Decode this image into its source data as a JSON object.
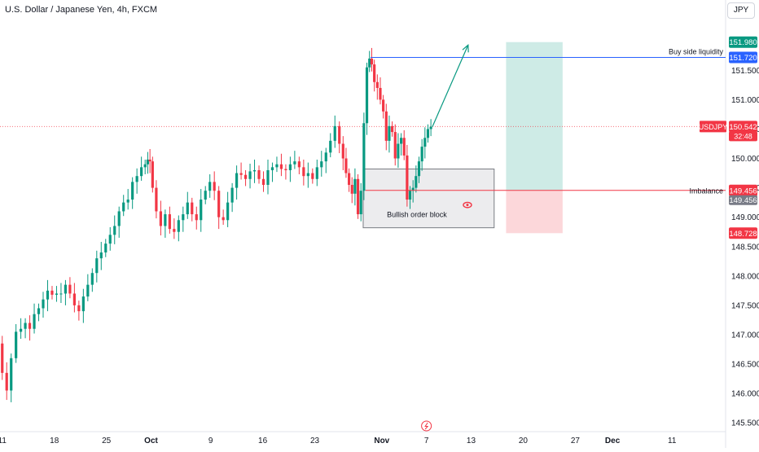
{
  "header": {
    "title": "U.S. Dollar / Japanese Yen, 4h, FXCM",
    "currency_button": "JPY"
  },
  "colors": {
    "up": "#089981",
    "down": "#f23645",
    "accent": "#2962ff",
    "grid": "#f0f3fa"
  },
  "chart_data": {
    "type": "candlestick",
    "title": "U.S. Dollar / Japanese Yen, 4h, FXCM",
    "x_ticks": [
      {
        "day": 11,
        "label": "11"
      },
      {
        "day": 18,
        "label": "18"
      },
      {
        "day": 25,
        "label": "25"
      },
      {
        "day": 31,
        "label": "Oct"
      },
      {
        "day": 39,
        "label": "9"
      },
      {
        "day": 46,
        "label": "16"
      },
      {
        "day": 53,
        "label": "23"
      },
      {
        "day": 62,
        "label": "Nov"
      },
      {
        "day": 68,
        "label": "7"
      },
      {
        "day": 74,
        "label": "13"
      },
      {
        "day": 81,
        "label": "20"
      },
      {
        "day": 88,
        "label": "27"
      },
      {
        "day": 93,
        "label": "Dec"
      },
      {
        "day": 101,
        "label": "11"
      }
    ],
    "y_ticks": [
      145.5,
      146.0,
      146.5,
      147.0,
      147.5,
      148.0,
      148.5,
      149.0,
      149.5,
      150.0,
      150.5,
      151.0,
      151.5
    ],
    "y_tick_labels": [
      "145.500",
      "146.000",
      "146.500",
      "147.000",
      "147.500",
      "148.000",
      "148.500",
      "149.000",
      "149.500",
      "150.000",
      "150.500",
      "151.000",
      "151.500"
    ],
    "ylim": [
      145.35,
      152.35
    ],
    "xlim": [
      10.7,
      108.2
    ],
    "price_points": [
      [
        10.7,
        146.85
      ],
      [
        11.3,
        146.35
      ],
      [
        11.9,
        146.05
      ],
      [
        12.5,
        146.6
      ],
      [
        13.2,
        147.05
      ],
      [
        13.8,
        147.1
      ],
      [
        14.4,
        147.2
      ],
      [
        15.0,
        147.1
      ],
      [
        15.6,
        147.35
      ],
      [
        16.2,
        147.45
      ],
      [
        16.8,
        147.6
      ],
      [
        17.4,
        147.75
      ],
      [
        18.0,
        147.68
      ],
      [
        18.6,
        147.7
      ],
      [
        19.2,
        147.7
      ],
      [
        19.8,
        147.85
      ],
      [
        20.4,
        147.7
      ],
      [
        21.0,
        147.5
      ],
      [
        21.6,
        147.4
      ],
      [
        22.2,
        147.65
      ],
      [
        22.8,
        147.85
      ],
      [
        23.4,
        148.05
      ],
      [
        24.0,
        148.3
      ],
      [
        24.6,
        148.4
      ],
      [
        25.2,
        148.55
      ],
      [
        25.8,
        148.7
      ],
      [
        26.4,
        148.85
      ],
      [
        27.0,
        149.1
      ],
      [
        27.6,
        149.25
      ],
      [
        28.2,
        149.3
      ],
      [
        28.8,
        149.6
      ],
      [
        29.4,
        149.7
      ],
      [
        30.0,
        149.85
      ],
      [
        30.4,
        149.9
      ],
      [
        30.7,
        149.98
      ],
      [
        31.0,
        149.95
      ],
      [
        31.4,
        149.5
      ],
      [
        32.0,
        149.1
      ],
      [
        32.6,
        148.85
      ],
      [
        33.2,
        149.05
      ],
      [
        33.8,
        148.8
      ],
      [
        34.4,
        148.75
      ],
      [
        35.0,
        148.95
      ],
      [
        35.6,
        149.05
      ],
      [
        36.2,
        149.25
      ],
      [
        36.8,
        149.05
      ],
      [
        37.4,
        148.95
      ],
      [
        38.0,
        149.3
      ],
      [
        38.6,
        149.45
      ],
      [
        39.2,
        149.6
      ],
      [
        39.8,
        149.45
      ],
      [
        40.4,
        149.0
      ],
      [
        41.0,
        148.95
      ],
      [
        41.6,
        149.25
      ],
      [
        42.2,
        149.5
      ],
      [
        42.8,
        149.75
      ],
      [
        43.4,
        149.72
      ],
      [
        44.0,
        149.65
      ],
      [
        44.6,
        149.78
      ],
      [
        45.2,
        149.8
      ],
      [
        45.8,
        149.65
      ],
      [
        46.4,
        149.55
      ],
      [
        47.0,
        149.8
      ],
      [
        47.6,
        149.85
      ],
      [
        48.2,
        149.9
      ],
      [
        48.8,
        149.82
      ],
      [
        49.4,
        149.8
      ],
      [
        50.0,
        149.9
      ],
      [
        50.6,
        149.95
      ],
      [
        51.2,
        149.85
      ],
      [
        51.8,
        149.7
      ],
      [
        52.4,
        149.75
      ],
      [
        53.0,
        149.65
      ],
      [
        53.6,
        149.85
      ],
      [
        54.2,
        149.95
      ],
      [
        54.8,
        150.1
      ],
      [
        55.4,
        150.3
      ],
      [
        56.0,
        150.55
      ],
      [
        56.6,
        150.25
      ],
      [
        57.0,
        150.0
      ],
      [
        57.4,
        149.75
      ],
      [
        57.8,
        149.55
      ],
      [
        58.2,
        149.4
      ],
      [
        58.6,
        149.65
      ],
      [
        59.0,
        149.05
      ],
      [
        59.4,
        149.45
      ],
      [
        59.8,
        150.6
      ],
      [
        60.2,
        151.55
      ],
      [
        60.5,
        151.7
      ],
      [
        60.8,
        151.6
      ],
      [
        61.2,
        151.3
      ],
      [
        61.6,
        151.2
      ],
      [
        62.0,
        151.0
      ],
      [
        62.4,
        150.8
      ],
      [
        62.8,
        150.3
      ],
      [
        63.2,
        150.55
      ],
      [
        63.6,
        150.45
      ],
      [
        64.0,
        150.0
      ],
      [
        64.4,
        150.25
      ],
      [
        64.8,
        150.35
      ],
      [
        65.2,
        150.05
      ],
      [
        65.6,
        149.3
      ],
      [
        66.0,
        149.45
      ],
      [
        66.4,
        149.5
      ],
      [
        66.8,
        149.7
      ],
      [
        67.2,
        149.95
      ],
      [
        67.6,
        150.2
      ],
      [
        68.0,
        150.35
      ],
      [
        68.4,
        150.5
      ],
      [
        68.8,
        150.54
      ]
    ],
    "annotations": {
      "buy_side_liquidity": {
        "label": "Buy side liquidity",
        "price": 151.72,
        "x_start": 60.5
      },
      "current_price_line": {
        "price": 150.542
      },
      "imbalance": {
        "label": "Imbalance",
        "price": 149.456,
        "x_start": 59.8
      },
      "order_block": {
        "label": "Bullish order block",
        "x1": 59.5,
        "x2": 77.1,
        "y1": 149.82,
        "y2": 148.82
      },
      "projection": {
        "from": [
          68.8,
          150.54
        ],
        "to": [
          73.6,
          151.93
        ]
      },
      "position": {
        "x1": 78.7,
        "x2": 86.3,
        "target": 151.98,
        "entry": 149.456,
        "stop": 148.728
      }
    },
    "price_labels": [
      {
        "text": "151.980",
        "price": 151.98,
        "color": "#089981"
      },
      {
        "text": "151.720",
        "price": 151.72,
        "color": "#2962ff"
      },
      {
        "text": "150.542",
        "price": 150.542,
        "color": "#f23645",
        "sub": "32:48"
      },
      {
        "text": "149.456",
        "price": 149.456,
        "color": "#f23645",
        "sub_grey": "149.456"
      },
      {
        "text": "148.728",
        "price": 148.728,
        "color": "#f23645"
      }
    ],
    "symbol_tag": "USDJPY"
  }
}
